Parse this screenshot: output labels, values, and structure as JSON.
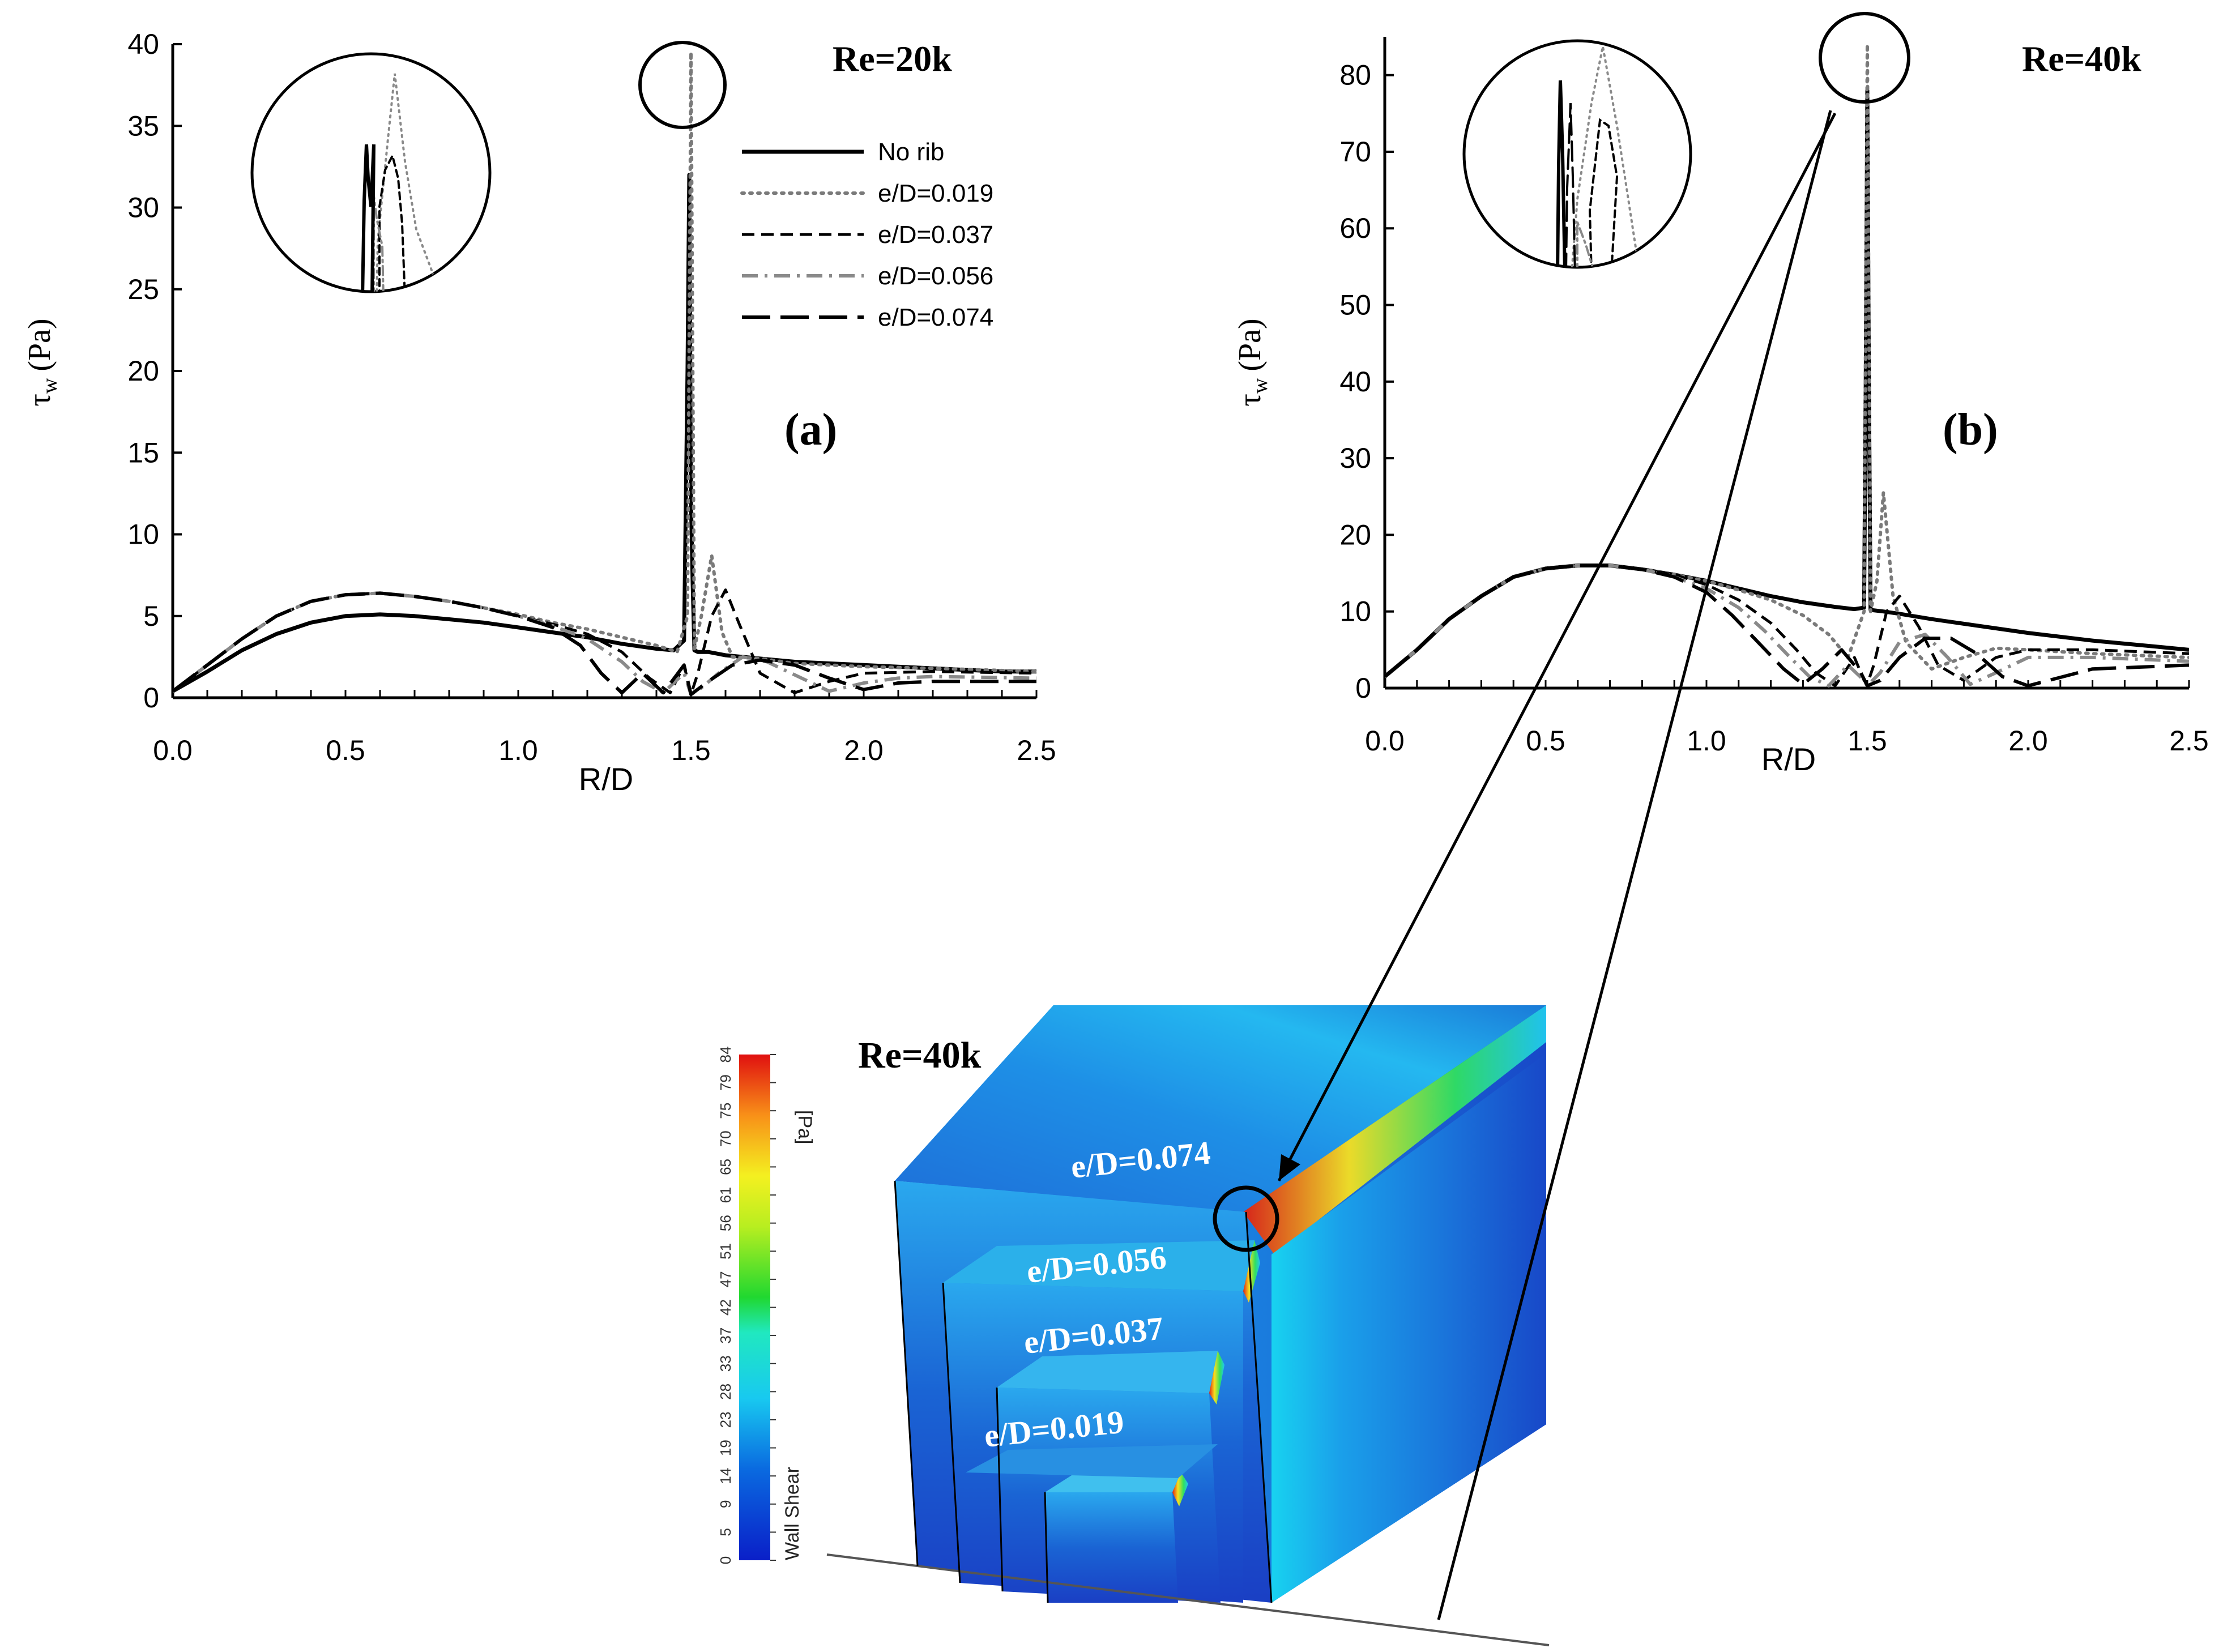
{
  "chart_data": [
    {
      "id": "a",
      "type": "line",
      "panel_label": "(a)",
      "title": "Re=20k",
      "xlabel": "R/D",
      "ylabel_symbol": "τ",
      "ylabel_sub": "w",
      "ylabel_unit": "(Pa)",
      "xlim": [
        0,
        2.5
      ],
      "ylim": [
        0,
        40
      ],
      "xticks": [
        "0.0",
        "0.5",
        "1.0",
        "1.5",
        "2.0",
        "2.5"
      ],
      "yticks": [
        "0",
        "5",
        "10",
        "15",
        "20",
        "25",
        "30",
        "35",
        "40"
      ],
      "legend_position": "top-right",
      "series": [
        {
          "name": "No rib",
          "style": "solid",
          "color": "#000000",
          "x": [
            0,
            0.1,
            0.2,
            0.3,
            0.4,
            0.5,
            0.6,
            0.7,
            0.8,
            0.9,
            1.0,
            1.1,
            1.2,
            1.3,
            1.4,
            1.45,
            1.48,
            1.49,
            1.495,
            1.5,
            1.505,
            1.51,
            1.52,
            1.55,
            1.6,
            1.7,
            1.8,
            1.9,
            2.0,
            2.1,
            2.2,
            2.3,
            2.4,
            2.5
          ],
          "y": [
            0.4,
            1.6,
            2.9,
            3.9,
            4.6,
            5.0,
            5.1,
            5.0,
            4.8,
            4.6,
            4.3,
            4.0,
            3.7,
            3.3,
            3.0,
            2.9,
            3.5,
            20,
            32,
            12,
            7,
            2.9,
            2.8,
            2.8,
            2.6,
            2.4,
            2.2,
            2.1,
            2.0,
            1.9,
            1.8,
            1.7,
            1.6,
            1.6
          ]
        },
        {
          "name": "e/D=0.019",
          "style": "dotted",
          "color": "#7a7a7a",
          "x": [
            0,
            0.1,
            0.2,
            0.3,
            0.4,
            0.5,
            0.6,
            0.7,
            0.8,
            0.9,
            1.0,
            1.1,
            1.2,
            1.3,
            1.4,
            1.46,
            1.49,
            1.5,
            1.51,
            1.53,
            1.56,
            1.59,
            1.62,
            1.7,
            1.8,
            2.0,
            2.2,
            2.5
          ],
          "y": [
            0.4,
            2.0,
            3.6,
            5.0,
            5.9,
            6.3,
            6.4,
            6.2,
            5.9,
            5.5,
            5.1,
            4.6,
            4.2,
            3.7,
            3.2,
            2.8,
            5.0,
            39.5,
            3.0,
            5.0,
            8.7,
            4.0,
            2.5,
            2.4,
            2.1,
            1.9,
            1.8,
            1.6
          ]
        },
        {
          "name": "e/D=0.037",
          "style": "dashed",
          "color": "#000000",
          "x": [
            0,
            0.1,
            0.2,
            0.3,
            0.4,
            0.5,
            0.6,
            0.7,
            0.8,
            0.9,
            1.0,
            1.1,
            1.2,
            1.3,
            1.38,
            1.44,
            1.48,
            1.5,
            1.52,
            1.56,
            1.6,
            1.64,
            1.7,
            1.8,
            1.9,
            2.0,
            2.2,
            2.5
          ],
          "y": [
            0.4,
            2.0,
            3.6,
            5.0,
            5.9,
            6.3,
            6.4,
            6.2,
            5.9,
            5.5,
            5.0,
            4.5,
            3.9,
            2.8,
            1.2,
            0.3,
            2.0,
            0.2,
            1.5,
            5.0,
            6.6,
            4.5,
            1.5,
            0.3,
            1.0,
            1.5,
            1.6,
            1.5
          ]
        },
        {
          "name": "e/D=0.056",
          "style": "dashdot",
          "color": "#8a8a8a",
          "x": [
            0,
            0.1,
            0.2,
            0.3,
            0.4,
            0.5,
            0.6,
            0.7,
            0.8,
            0.9,
            1.0,
            1.1,
            1.2,
            1.3,
            1.36,
            1.42,
            1.48,
            1.5,
            1.53,
            1.58,
            1.65,
            1.72,
            1.8,
            1.9,
            2.0,
            2.1,
            2.2,
            2.5
          ],
          "y": [
            0.4,
            2.0,
            3.6,
            5.0,
            5.9,
            6.3,
            6.4,
            6.2,
            5.9,
            5.5,
            5.0,
            4.4,
            3.6,
            2.2,
            1.0,
            0.3,
            1.5,
            0.2,
            0.6,
            1.5,
            2.5,
            2.2,
            1.4,
            0.4,
            0.9,
            1.2,
            1.3,
            1.2
          ]
        },
        {
          "name": "e/D=0.074",
          "style": "longdash",
          "color": "#000000",
          "x": [
            0,
            0.1,
            0.2,
            0.3,
            0.4,
            0.5,
            0.6,
            0.7,
            0.8,
            0.9,
            1.0,
            1.1,
            1.18,
            1.24,
            1.3,
            1.36,
            1.42,
            1.48,
            1.5,
            1.55,
            1.62,
            1.7,
            1.8,
            1.9,
            2.0,
            2.1,
            2.2,
            2.5
          ],
          "y": [
            0.4,
            2.0,
            3.6,
            5.0,
            5.9,
            6.3,
            6.4,
            6.2,
            5.9,
            5.5,
            5.0,
            4.3,
            3.2,
            1.5,
            0.3,
            1.5,
            0.3,
            2.0,
            0.2,
            1.0,
            2.0,
            2.3,
            2.0,
            1.2,
            0.5,
            0.9,
            1.0,
            1.0
          ]
        }
      ]
    },
    {
      "id": "b",
      "type": "line",
      "panel_label": "(b)",
      "title": "Re=40k",
      "xlabel": "R/D",
      "ylabel_symbol": "τ",
      "ylabel_sub": "w",
      "ylabel_unit": "(Pa)",
      "xlim": [
        0,
        2.5
      ],
      "ylim": [
        0,
        85
      ],
      "xticks": [
        "0.0",
        "0.5",
        "1.0",
        "1.5",
        "2.0",
        "2.5"
      ],
      "yticks": [
        "0",
        "10",
        "20",
        "30",
        "40",
        "50",
        "60",
        "70",
        "80"
      ],
      "legend_position": "none",
      "series": [
        {
          "name": "No rib",
          "style": "solid",
          "color": "#000000",
          "x": [
            0,
            0.1,
            0.2,
            0.3,
            0.4,
            0.5,
            0.6,
            0.7,
            0.8,
            0.9,
            1.0,
            1.1,
            1.2,
            1.3,
            1.4,
            1.46,
            1.49,
            1.495,
            1.5,
            1.505,
            1.51,
            1.55,
            1.6,
            1.7,
            1.8,
            1.9,
            2.0,
            2.1,
            2.2,
            2.3,
            2.4,
            2.5
          ],
          "y": [
            1.5,
            5.0,
            9.0,
            12.0,
            14.5,
            15.6,
            16.0,
            16.0,
            15.5,
            14.8,
            14.0,
            13.0,
            12.0,
            11.2,
            10.6,
            10.3,
            10.5,
            40,
            78,
            40,
            10.2,
            10.0,
            9.7,
            9.0,
            8.4,
            7.8,
            7.2,
            6.7,
            6.2,
            5.8,
            5.4,
            5.0
          ]
        },
        {
          "name": "e/D=0.019",
          "style": "dotted",
          "color": "#7a7a7a",
          "x": [
            0,
            0.1,
            0.2,
            0.3,
            0.4,
            0.5,
            0.6,
            0.7,
            0.8,
            0.9,
            1.0,
            1.1,
            1.2,
            1.3,
            1.38,
            1.44,
            1.49,
            1.5,
            1.51,
            1.53,
            1.55,
            1.58,
            1.62,
            1.7,
            1.8,
            1.9,
            2.0,
            2.2,
            2.5
          ],
          "y": [
            1.5,
            5.0,
            9.0,
            12.0,
            14.5,
            15.6,
            16.0,
            16.0,
            15.5,
            14.8,
            14.0,
            12.8,
            11.5,
            9.5,
            7.0,
            4.0,
            10,
            84,
            10,
            14,
            25.5,
            12,
            6,
            2.5,
            4.0,
            5.2,
            5.0,
            4.5,
            4.0
          ]
        },
        {
          "name": "e/D=0.037",
          "style": "dashed",
          "color": "#000000",
          "x": [
            0,
            0.1,
            0.2,
            0.3,
            0.4,
            0.5,
            0.6,
            0.7,
            0.8,
            0.9,
            1.0,
            1.1,
            1.2,
            1.28,
            1.34,
            1.4,
            1.46,
            1.49,
            1.5,
            1.52,
            1.56,
            1.6,
            1.66,
            1.72,
            1.8,
            1.9,
            2.0,
            2.2,
            2.5
          ],
          "y": [
            1.5,
            5.0,
            9.0,
            12.0,
            14.5,
            15.6,
            16.0,
            16.0,
            15.5,
            14.8,
            13.5,
            11.5,
            8.5,
            5.0,
            2.0,
            0.3,
            4.0,
            1.0,
            0.5,
            3.0,
            10,
            12,
            8,
            3,
            1.0,
            4.0,
            5.0,
            5.0,
            4.5
          ]
        },
        {
          "name": "e/D=0.056",
          "style": "dashdot",
          "color": "#8a8a8a",
          "x": [
            0,
            0.1,
            0.2,
            0.3,
            0.4,
            0.5,
            0.6,
            0.7,
            0.8,
            0.9,
            1.0,
            1.1,
            1.18,
            1.26,
            1.32,
            1.38,
            1.44,
            1.49,
            1.5,
            1.54,
            1.6,
            1.68,
            1.75,
            1.82,
            1.9,
            2.0,
            2.2,
            2.5
          ],
          "y": [
            1.5,
            5.0,
            9.0,
            12.0,
            14.5,
            15.6,
            16.0,
            16.0,
            15.5,
            14.5,
            13.0,
            10.5,
            7.5,
            4.0,
            1.5,
            0.3,
            3.0,
            1.0,
            0.3,
            2.0,
            6.0,
            7.0,
            4.0,
            0.5,
            2.0,
            4.0,
            4.0,
            3.5
          ]
        },
        {
          "name": "e/D=0.074",
          "style": "longdash",
          "color": "#000000",
          "x": [
            0,
            0.1,
            0.2,
            0.3,
            0.4,
            0.5,
            0.6,
            0.7,
            0.8,
            0.9,
            1.0,
            1.08,
            1.16,
            1.24,
            1.3,
            1.36,
            1.42,
            1.48,
            1.5,
            1.54,
            1.6,
            1.68,
            1.76,
            1.84,
            1.92,
            2.0,
            2.2,
            2.5
          ],
          "y": [
            1.5,
            5.0,
            9.0,
            12.0,
            14.5,
            15.6,
            16.0,
            16.0,
            15.5,
            14.5,
            12.5,
            9.5,
            6.0,
            2.5,
            0.5,
            2.5,
            5.0,
            2.0,
            0.3,
            1.0,
            4.0,
            6.5,
            6.5,
            4.5,
            1.5,
            0.3,
            2.5,
            3.0
          ]
        }
      ]
    }
  ],
  "inset": {
    "title": "Re=40k",
    "colorbar_label": "Wall Shear",
    "colorbar_unit": "[Pa]",
    "colorbar_ticks": [
      "0",
      "5",
      "9",
      "14",
      "19",
      "23",
      "28",
      "33",
      "37",
      "42",
      "47",
      "51",
      "56",
      "61",
      "65",
      "70",
      "75",
      "79",
      "84"
    ],
    "rib_labels": [
      "e/D=0.074",
      "e/D=0.056",
      "e/D=0.037",
      "e/D=0.019"
    ]
  }
}
